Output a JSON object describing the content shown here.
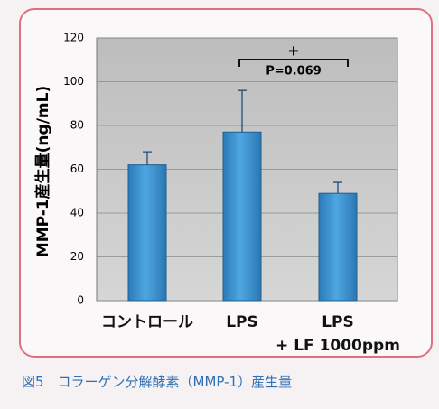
{
  "chart_data": {
    "type": "bar",
    "y_label": "MMP-1産生量(ng/mL)",
    "categories": [
      "コントロール",
      "LPS",
      "LPS\n+ LF 1000ppm"
    ],
    "values": [
      62,
      77,
      49
    ],
    "errors": [
      6,
      19,
      5
    ],
    "color": "#3d8ecb",
    "ylim": [
      0,
      120
    ],
    "yticks": [
      0,
      20,
      40,
      60,
      80,
      100,
      120
    ],
    "grid": true,
    "annotations": [
      "+",
      "P=0.069"
    ],
    "caption": "図5　コラーゲン分解酵素（MMP-1）産生量"
  }
}
